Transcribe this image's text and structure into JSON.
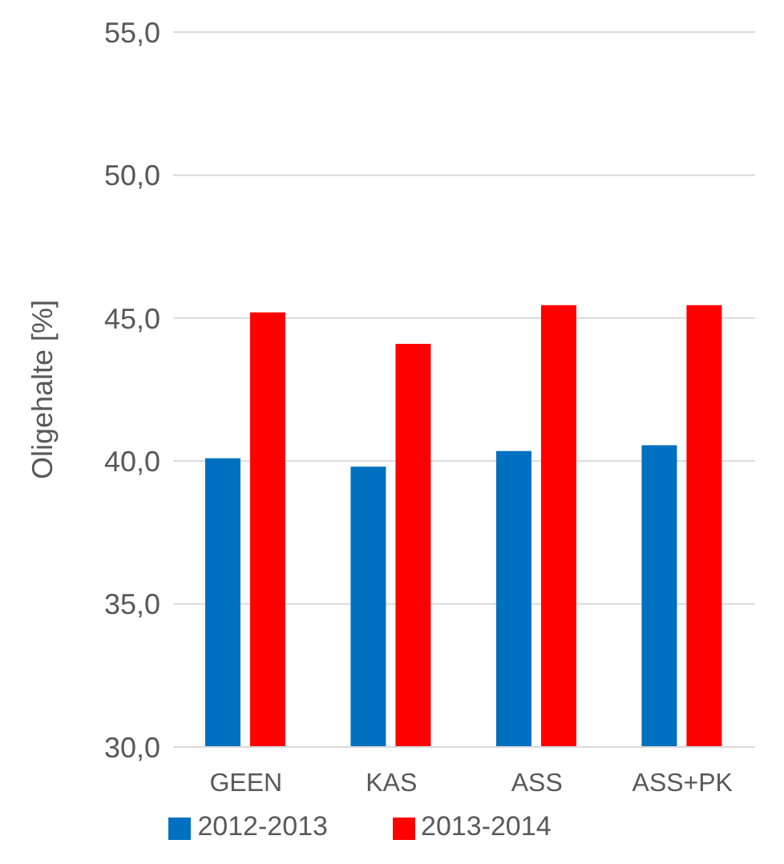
{
  "chart_data": {
    "type": "bar",
    "ylabel": "Oligehalte [%]",
    "categories": [
      "GEEN",
      "KAS",
      "ASS",
      "ASS+PK"
    ],
    "series": [
      {
        "name": "2012-2013",
        "color": "#0070c0",
        "values": [
          40.1,
          39.8,
          40.35,
          40.55
        ]
      },
      {
        "name": "2013-2014",
        "color": "#ff0000",
        "values": [
          45.2,
          44.1,
          45.45,
          45.45
        ]
      }
    ],
    "ylim": [
      30,
      55
    ],
    "yticks": [
      {
        "value": 30,
        "label": "30,0"
      },
      {
        "value": 35,
        "label": "35,0"
      },
      {
        "value": 40,
        "label": "40,0"
      },
      {
        "value": 45,
        "label": "45,0"
      },
      {
        "value": 50,
        "label": "50,0"
      },
      {
        "value": 55,
        "label": "55,0"
      }
    ],
    "grid": "y",
    "legend": "bottom"
  }
}
